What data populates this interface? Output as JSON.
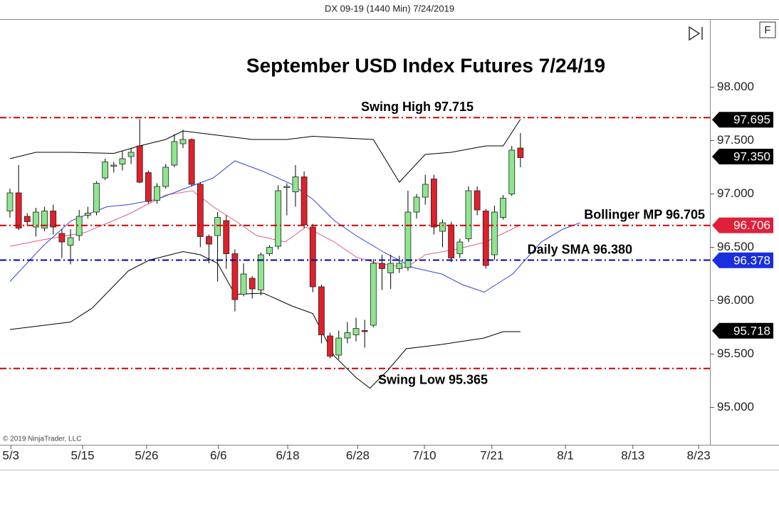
{
  "header": "DX 09-19 (1440 Min)  7/24/2019",
  "copyright": "© 2019 NinjaTrader, LLC",
  "button": "F",
  "chart_data": {
    "type": "candlestick",
    "title": "September USD Index Futures 7/24/19",
    "open": [
      96.84,
      97.01,
      96.79,
      96.69,
      96.68,
      96.84,
      96.63,
      96.52,
      96.61,
      96.8,
      96.83,
      97.15,
      97.26,
      97.28,
      97.35,
      97.45,
      97.2,
      96.94,
      97.07,
      97.27,
      97.47,
      97.51,
      97.09,
      96.6,
      96.61,
      96.75,
      96.44,
      96.06,
      96.21,
      96.1,
      96.44,
      96.51,
      97.06,
      97.02,
      97.16,
      96.69,
      96.13,
      95.67,
      95.49,
      95.65,
      95.68,
      95.72,
      95.77,
      96.35,
      96.26,
      96.3,
      96.31,
      96.83,
      96.97,
      97.14,
      96.65,
      96.71,
      96.44,
      96.58,
      97.03,
      96.84,
      96.43,
      96.78,
      97.0,
      97.43
    ],
    "high": [
      97.05,
      97.27,
      96.82,
      96.87,
      96.88,
      96.9,
      96.67,
      96.67,
      96.85,
      96.88,
      97.12,
      97.33,
      97.3,
      97.4,
      97.43,
      97.7,
      97.22,
      97.1,
      97.28,
      97.56,
      97.6,
      97.52,
      97.11,
      96.62,
      96.83,
      96.8,
      96.48,
      96.35,
      96.23,
      96.45,
      96.52,
      97.08,
      97.1,
      97.27,
      97.21,
      96.72,
      96.15,
      95.7,
      95.72,
      95.8,
      95.84,
      95.82,
      96.39,
      96.43,
      96.43,
      96.42,
      97.03,
      97.0,
      97.18,
      97.18,
      96.76,
      96.74,
      96.58,
      97.07,
      97.07,
      96.86,
      96.89,
      96.99,
      97.45,
      97.57
    ],
    "low": [
      96.78,
      96.66,
      96.7,
      96.6,
      96.65,
      96.62,
      96.4,
      96.34,
      96.56,
      96.77,
      96.8,
      97.13,
      97.2,
      97.22,
      97.28,
      97.1,
      96.91,
      96.91,
      97.05,
      97.25,
      97.43,
      97.07,
      96.5,
      96.35,
      96.18,
      96.3,
      95.9,
      96.04,
      96.02,
      96.05,
      96.42,
      96.48,
      96.8,
      96.88,
      96.68,
      96.08,
      95.6,
      95.46,
      95.45,
      95.6,
      95.62,
      95.56,
      95.75,
      96.1,
      96.11,
      96.26,
      96.28,
      96.77,
      96.9,
      96.62,
      96.5,
      96.36,
      96.4,
      96.55,
      96.8,
      96.3,
      96.38,
      96.76,
      96.98,
      97.25
    ],
    "close": [
      97.01,
      96.68,
      96.74,
      96.83,
      96.84,
      96.69,
      96.55,
      96.59,
      96.79,
      96.82,
      97.1,
      97.3,
      97.27,
      97.33,
      97.39,
      97.11,
      96.93,
      97.07,
      97.25,
      97.49,
      97.51,
      97.09,
      96.6,
      96.53,
      96.78,
      96.44,
      96.01,
      96.25,
      96.11,
      96.43,
      96.5,
      97.03,
      97.07,
      97.16,
      96.71,
      96.13,
      95.68,
      95.48,
      95.65,
      95.7,
      95.74,
      95.71,
      96.35,
      96.3,
      96.35,
      96.35,
      96.83,
      96.97,
      97.09,
      96.69,
      96.73,
      96.4,
      96.55,
      97.03,
      96.85,
      96.33,
      96.83,
      96.96,
      97.41,
      97.34
    ],
    "up_color": "#8ee68e",
    "down_color": "#e0202a",
    "lines": [
      {
        "color": "#000000",
        "x": [
          0,
          3,
          7,
          12,
          15,
          18,
          20,
          24,
          28,
          32,
          35,
          42,
          45,
          48,
          51,
          55,
          57,
          59
        ],
        "values": [
          97.33,
          97.39,
          97.39,
          97.38,
          97.45,
          97.51,
          97.59,
          97.55,
          97.51,
          97.51,
          97.54,
          97.51,
          97.11,
          97.37,
          97.39,
          97.45,
          97.45,
          97.7
        ]
      },
      {
        "color": "#000000",
        "x": [
          0,
          7,
          9.5,
          13.7,
          16.1,
          20,
          22,
          24,
          26,
          29.3,
          32.6,
          35,
          37.5,
          40,
          41.6,
          43.7,
          45.8,
          49.9,
          54.8,
          57,
          59
        ],
        "values": [
          95.73,
          95.8,
          95.93,
          96.28,
          96.38,
          96.46,
          96.43,
          96.35,
          96.06,
          96.07,
          95.95,
          95.88,
          95.48,
          95.28,
          95.18,
          95.35,
          95.55,
          95.59,
          95.65,
          95.71,
          95.71
        ]
      },
      {
        "color": "#e0607a",
        "x": [
          0,
          3.8,
          8.7,
          13.7,
          18,
          21.1,
          23.5,
          26,
          28.5,
          31.8,
          34.2,
          37.5,
          40,
          42.5,
          45.8,
          48,
          51.5,
          55,
          59
        ],
        "values": [
          96.51,
          96.57,
          96.64,
          96.81,
          96.99,
          97.03,
          96.88,
          96.75,
          96.61,
          96.55,
          96.69,
          96.55,
          96.41,
          96.35,
          96.31,
          96.43,
          96.48,
          96.55,
          96.71
        ]
      },
      {
        "color": "#3344dd",
        "x": [
          0,
          3.8,
          7.1,
          11.2,
          13.7,
          17,
          20.2,
          23.5,
          26,
          29.3,
          32.6,
          35,
          37.5,
          40,
          43.3,
          46.6,
          49.9,
          52.3,
          54.8,
          58.1,
          61.4,
          63.9,
          65.9
        ],
        "values": [
          96.18,
          96.51,
          96.75,
          96.88,
          96.9,
          96.95,
          97.05,
          97.15,
          97.31,
          97.21,
          97.09,
          96.95,
          96.75,
          96.61,
          96.45,
          96.31,
          96.25,
          96.15,
          96.08,
          96.25,
          96.55,
          96.67,
          96.73
        ]
      }
    ],
    "levels": [
      {
        "label": "Swing High 97.715",
        "value": 97.715,
        "color": "#d00000"
      },
      {
        "label": "Bollinger MP 96.705",
        "value": 96.705,
        "color": "#d00000"
      },
      {
        "label": "Daily SMA 96.380",
        "value": 96.38,
        "color": "#0000b0"
      },
      {
        "label": "Swing Low 95.365",
        "value": 95.365,
        "color": "#d00000"
      }
    ],
    "price_markers": [
      {
        "value": 97.695,
        "label": "97.695",
        "color": "#000000"
      },
      {
        "value": 97.35,
        "label": "97.350",
        "color": "#000000"
      },
      {
        "value": 96.706,
        "label": "96.706",
        "color": "#e0203a"
      },
      {
        "value": 96.378,
        "label": "96.378",
        "color": "#1a2ee0"
      },
      {
        "value": 95.718,
        "label": "95.718",
        "color": "#000000"
      }
    ],
    "ylim": [
      94.65,
      98.63
    ],
    "yticks": [
      {
        "value": 95,
        "label": "95.000"
      },
      {
        "value": 95.5,
        "label": "95.500"
      },
      {
        "value": 96,
        "label": "96.000"
      },
      {
        "value": 96.5,
        "label": "96.500"
      },
      {
        "value": 97,
        "label": "97.000"
      },
      {
        "value": 97.5,
        "label": "97.500"
      },
      {
        "value": 98,
        "label": "98.000"
      }
    ],
    "xlim": [
      -1.15,
      80.9
    ],
    "xticks": [
      {
        "value": 0.1,
        "label": "5/3"
      },
      {
        "value": 8.4,
        "label": "5/15"
      },
      {
        "value": 15.8,
        "label": "5/26"
      },
      {
        "value": 24.1,
        "label": "6/6"
      },
      {
        "value": 32.1,
        "label": "6/18"
      },
      {
        "value": 40.2,
        "label": "6/28"
      },
      {
        "value": 47.9,
        "label": "7/10"
      },
      {
        "value": 55.7,
        "label": "7/21"
      },
      {
        "value": 64.2,
        "label": "8/1"
      },
      {
        "value": 72,
        "label": "8/13"
      },
      {
        "value": 79.6,
        "label": "8/23"
      }
    ]
  }
}
